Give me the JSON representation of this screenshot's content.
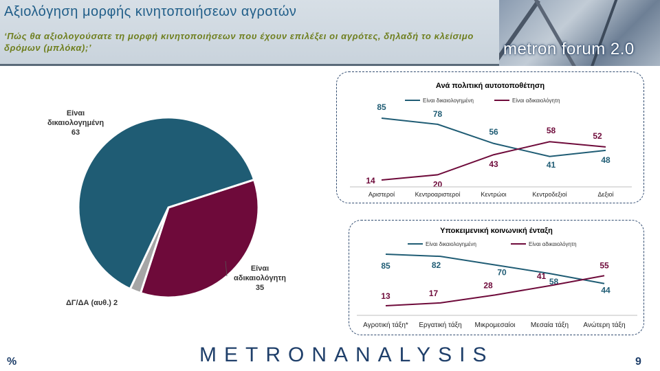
{
  "header": {
    "title": "Αξιολόγηση μορφής κινητοποιήσεων αγροτών",
    "subtitle": "‘Πώς θα αξιολογούσατε τη μορφή κινητοποιήσεων που έχουν επιλέξει οι αγρότες, δηλαδή το κλείσιμο δρόμων (μπλόκα);’",
    "logo_text": "metron forum 2.0"
  },
  "colors": {
    "teal": "#1f5c74",
    "maroon": "#6e0a3a",
    "gray": "#a6a6a6",
    "brand": "#1f3f6a"
  },
  "footer": {
    "brand": "METRONANALYSIS",
    "unit": "%",
    "page": "9"
  },
  "chart_data": [
    {
      "type": "pie",
      "categories": [
        "Είναι δικαιολογημένη",
        "Είναι αδικαιολόγητη",
        "ΔΓ/ΔΑ (αυθ.)"
      ],
      "values": [
        63,
        35,
        2
      ],
      "labels": [
        {
          "lines": [
            "Είναι",
            "δικαιολογημένη",
            "63"
          ]
        },
        {
          "lines": [
            "Είναι",
            "αδικαιολόγητη",
            "35"
          ]
        },
        {
          "lines": [
            "ΔΓ/ΔΑ (αυθ.) 2"
          ]
        }
      ]
    },
    {
      "type": "line",
      "title": "Ανά πολιτική αυτοτοποθέτηση",
      "categories": [
        "Αριστεροί",
        "Κεντροαριστεροί",
        "Κεντρώοι",
        "Κεντροδεξιοί",
        "Δεξιοί"
      ],
      "series": [
        {
          "name": "Είναι δικαιολογημένη",
          "values": [
            85,
            78,
            56,
            41,
            48
          ]
        },
        {
          "name": "Είναι αδικαιολόγητη",
          "values": [
            14,
            20,
            43,
            58,
            52
          ]
        }
      ],
      "legend": "top"
    },
    {
      "type": "line",
      "title": "Υποκειμενική κοινωνική ένταξη",
      "categories": [
        "Αγροτική τάξη*",
        "Εργατική τάξη",
        "Μικρομεσαίοι",
        "Μεσαία τάξη",
        "Ανώτερη τάξη"
      ],
      "series": [
        {
          "name": "Είναι δικαιολογημένη",
          "values": [
            85,
            82,
            70,
            58,
            44
          ]
        },
        {
          "name": "Είναι αδικαιολόγητη",
          "values": [
            13,
            17,
            28,
            41,
            55
          ]
        }
      ],
      "legend": "top"
    }
  ]
}
